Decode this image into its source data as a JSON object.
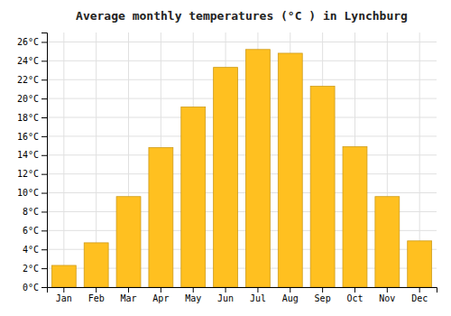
{
  "chart_data": {
    "type": "bar",
    "title": "Average monthly temperatures (°C ) in Lynchburg",
    "categories": [
      "Jan",
      "Feb",
      "Mar",
      "Apr",
      "May",
      "Jun",
      "Jul",
      "Aug",
      "Sep",
      "Oct",
      "Nov",
      "Dec"
    ],
    "values": [
      2.3,
      4.7,
      9.6,
      14.8,
      19.1,
      23.3,
      25.2,
      24.8,
      21.3,
      14.9,
      9.6,
      4.9
    ],
    "color": "#FFC020",
    "ylim": [
      0,
      27
    ],
    "yticks": [
      {
        "value": 0,
        "label": "0°C"
      },
      {
        "value": 2,
        "label": "2°C"
      },
      {
        "value": 4,
        "label": "4°C"
      },
      {
        "value": 6,
        "label": "6°C"
      },
      {
        "value": 8,
        "label": "8°C"
      },
      {
        "value": 10,
        "label": "10°C"
      },
      {
        "value": 12,
        "label": "12°C"
      },
      {
        "value": 14,
        "label": "14°C"
      },
      {
        "value": 16,
        "label": "16°C"
      },
      {
        "value": 18,
        "label": "18°C"
      },
      {
        "value": 20,
        "label": "20°C"
      },
      {
        "value": 22,
        "label": "22°C"
      },
      {
        "value": 24,
        "label": "24°C"
      },
      {
        "value": 26,
        "label": "26°C"
      }
    ],
    "grid": true
  }
}
